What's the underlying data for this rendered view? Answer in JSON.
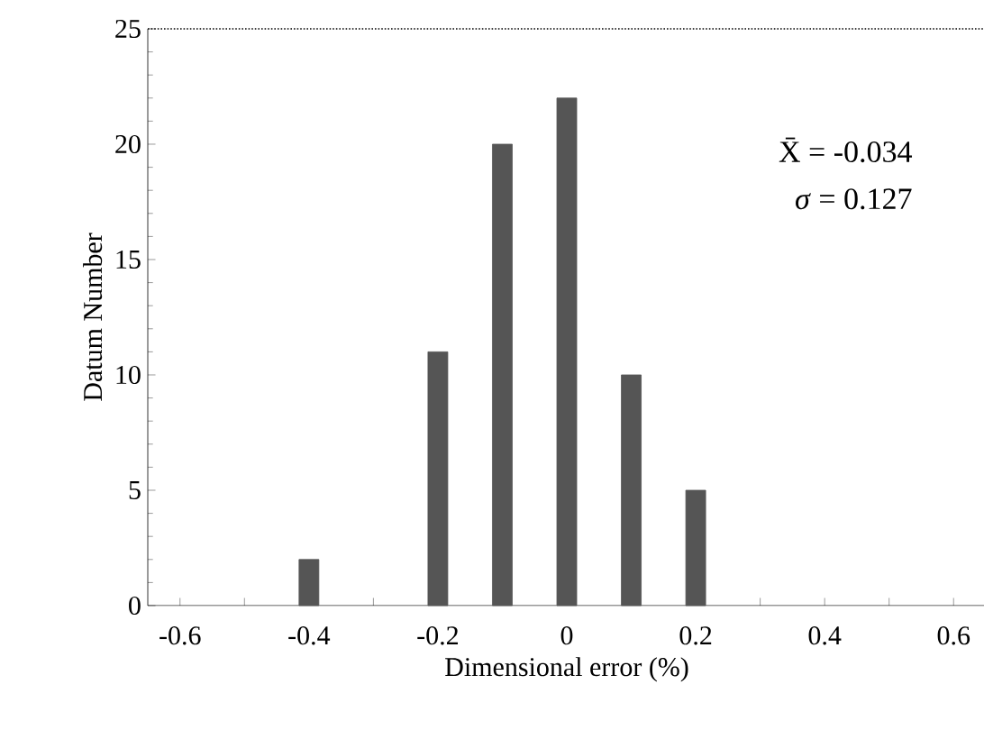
{
  "chart_data": {
    "type": "bar",
    "xlabel": "Dimensional error (%)",
    "ylabel": "Datum Number",
    "x": [
      -0.4,
      -0.2,
      -0.1,
      0,
      0.1,
      0.2
    ],
    "values": [
      2,
      11,
      20,
      22,
      10,
      5
    ],
    "color": "#555555",
    "xlim": [
      -0.65,
      0.65
    ],
    "xticks": [
      -0.6,
      {
        "value": -0.5,
        "label": null
      },
      -0.4,
      {
        "value": -0.3,
        "label": null
      },
      -0.2,
      {
        "value": -0.1,
        "label": null
      },
      0,
      {
        "value": 0.1,
        "label": null
      },
      0.2,
      {
        "value": 0.3,
        "label": null
      },
      0.4,
      {
        "value": 0.5,
        "label": null
      },
      0.6
    ],
    "ylim": [
      0,
      25
    ],
    "yticks": [
      0,
      5,
      10,
      15,
      20,
      25
    ],
    "annotations": [
      "X̄ = -0.034",
      "*σ* = 0.127"
    ]
  }
}
